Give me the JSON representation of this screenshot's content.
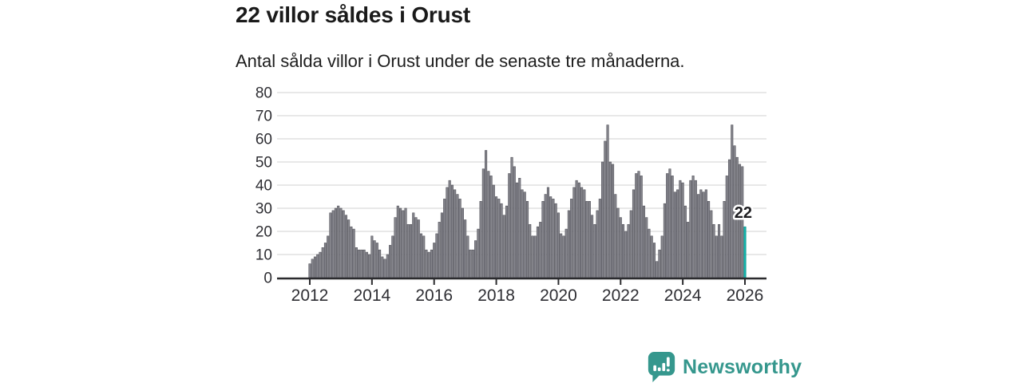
{
  "header": {
    "title": "22 villor såldes i Orust",
    "subtitle": "Antal sålda villor i Orust under de senaste tre månaderna."
  },
  "branding": {
    "name": "Newsworthy",
    "color": "#35978d",
    "icon": "newsworthy-bar-chart-bubble-logo"
  },
  "chart_data": {
    "type": "bar",
    "title": "22 villor såldes i Orust",
    "subtitle": "Antal sålda villor i Orust under de senaste tre månaderna.",
    "xlabel": "",
    "ylabel": "",
    "frequency": "monthly",
    "x_start": "2012-01",
    "x_end": "2026-01",
    "x_tick_labels": [
      "2012",
      "2014",
      "2016",
      "2018",
      "2020",
      "2022",
      "2024",
      "2026"
    ],
    "x_tick_years": [
      2012,
      2014,
      2016,
      2018,
      2020,
      2022,
      2024,
      2026
    ],
    "y_ticks": [
      0,
      10,
      20,
      30,
      40,
      50,
      60,
      70,
      80
    ],
    "ylim": [
      0,
      82
    ],
    "grid": "horizontal",
    "legend": "none",
    "values": [
      6,
      8,
      9,
      10,
      11,
      13,
      15,
      18,
      28,
      29,
      30,
      31,
      30,
      29,
      27,
      25,
      22,
      21,
      13,
      12,
      12,
      12,
      11,
      10,
      18,
      16,
      15,
      12,
      9,
      8,
      10,
      14,
      18,
      26,
      31,
      30,
      29,
      30,
      23,
      23,
      28,
      26,
      25,
      19,
      18,
      12,
      11,
      12,
      15,
      19,
      24,
      28,
      34,
      39,
      42,
      40,
      38,
      36,
      34,
      30,
      25,
      18,
      12,
      12,
      16,
      21,
      33,
      47,
      55,
      46,
      44,
      40,
      35,
      34,
      32,
      27,
      31,
      45,
      52,
      48,
      41,
      43,
      38,
      37,
      33,
      23,
      18,
      18,
      22,
      24,
      33,
      36,
      39,
      35,
      34,
      32,
      28,
      19,
      18,
      21,
      29,
      34,
      39,
      42,
      41,
      39,
      38,
      33,
      33,
      27,
      23,
      29,
      34,
      50,
      59,
      66,
      50,
      49,
      36,
      30,
      26,
      23,
      20,
      23,
      29,
      38,
      45,
      46,
      44,
      31,
      26,
      21,
      18,
      15,
      7,
      12,
      18,
      32,
      45,
      47,
      44,
      37,
      38,
      42,
      41,
      31,
      24,
      42,
      44,
      42,
      36,
      38,
      37,
      38,
      33,
      29,
      23,
      18,
      23,
      18,
      33,
      44,
      51,
      66,
      57,
      52,
      49,
      48,
      22
    ],
    "highlight": {
      "index": 168,
      "value": 22,
      "label": "22",
      "color": "#13b3ab",
      "stroke": "#0a938c"
    },
    "bar_color": "#85858c",
    "bar_stroke": "#53535b",
    "axis_color": "#2b2b2e",
    "gridline_color": "#dadada",
    "tick_label_color": "#2e2e33",
    "annotation_color": "#1e1e22"
  }
}
